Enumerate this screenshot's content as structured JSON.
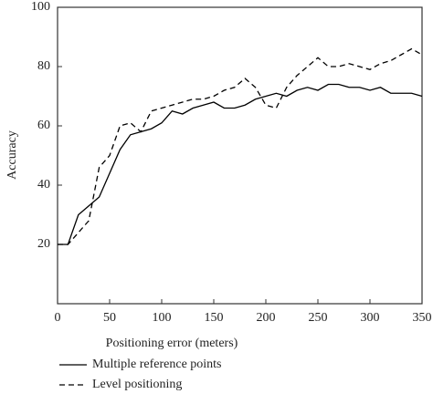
{
  "chart_data": {
    "type": "line",
    "x_label": "Positioning error (meters)",
    "y_label": "Accuracy",
    "x": [
      0,
      10,
      20,
      30,
      40,
      50,
      60,
      70,
      80,
      90,
      100,
      110,
      120,
      130,
      140,
      150,
      160,
      170,
      180,
      190,
      200,
      210,
      220,
      230,
      240,
      250,
      260,
      270,
      280,
      290,
      300,
      310,
      320,
      330,
      340,
      350
    ],
    "series": [
      {
        "name": "Multiple reference points",
        "color": "#000000",
        "line_style": "solid",
        "values": [
          20,
          20,
          30,
          33,
          36,
          44,
          52,
          57,
          58,
          59,
          61,
          65,
          64,
          66,
          67,
          68,
          66,
          66,
          67,
          69,
          70,
          71,
          70,
          72,
          73,
          72,
          74,
          74,
          73,
          73,
          72,
          73,
          71,
          71,
          71,
          70
        ]
      },
      {
        "name": "Level positioning",
        "color": "#000000",
        "line_style": "dashed",
        "values": [
          20,
          20,
          24,
          28,
          46,
          50,
          60,
          61,
          58,
          65,
          66,
          67,
          68,
          69,
          69,
          70,
          72,
          73,
          76,
          73,
          67,
          66,
          73,
          77,
          80,
          83,
          80,
          80,
          81,
          80,
          79,
          81,
          82,
          84,
          86,
          84
        ]
      }
    ],
    "xlim": [
      0,
      350
    ],
    "xticks": [
      0,
      50,
      100,
      150,
      200,
      250,
      300,
      350
    ],
    "ylim": [
      0,
      100
    ],
    "yticks": [
      20,
      40,
      60,
      80,
      100
    ],
    "grid": false,
    "legend": "bottom-left"
  }
}
